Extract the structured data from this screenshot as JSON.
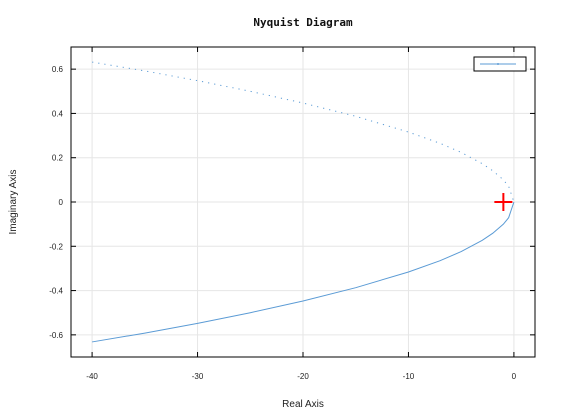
{
  "chart_data": {
    "type": "line",
    "title": "Nyquist Diagram",
    "xlabel": "Real Axis",
    "ylabel": "Imaginary Axis",
    "xlim": [
      -42,
      2
    ],
    "ylim": [
      -0.7,
      0.7
    ],
    "xticks": [
      -40,
      -30,
      -20,
      -10,
      0
    ],
    "yticks": [
      -0.6,
      -0.4,
      -0.2,
      0,
      0.2,
      0.4,
      0.6
    ],
    "grid": true,
    "legend": {
      "placement": "top-right",
      "entries": [
        ""
      ]
    },
    "critical_point": {
      "x": -1,
      "y": 0,
      "marker": "+",
      "color": "#ff0000"
    },
    "series": [
      {
        "style": "solid",
        "color": "#5b9bd5",
        "x": [
          -40,
          -35,
          -30,
          -25,
          -20,
          -15,
          -10,
          -7,
          -5,
          -3,
          -2,
          -1,
          -0.5,
          0
        ],
        "y": [
          -0.632,
          -0.592,
          -0.548,
          -0.5,
          -0.447,
          -0.387,
          -0.316,
          -0.265,
          -0.224,
          -0.173,
          -0.141,
          -0.1,
          -0.071,
          0
        ]
      },
      {
        "style": "dotted",
        "color": "#5b9bd5",
        "x": [
          -40,
          -35,
          -30,
          -25,
          -20,
          -15,
          -10,
          -7,
          -5,
          -3,
          -2,
          -1,
          -0.5,
          0
        ],
        "y": [
          0.632,
          0.592,
          0.548,
          0.5,
          0.447,
          0.387,
          0.316,
          0.265,
          0.224,
          0.173,
          0.141,
          0.1,
          0.071,
          0
        ]
      }
    ]
  }
}
